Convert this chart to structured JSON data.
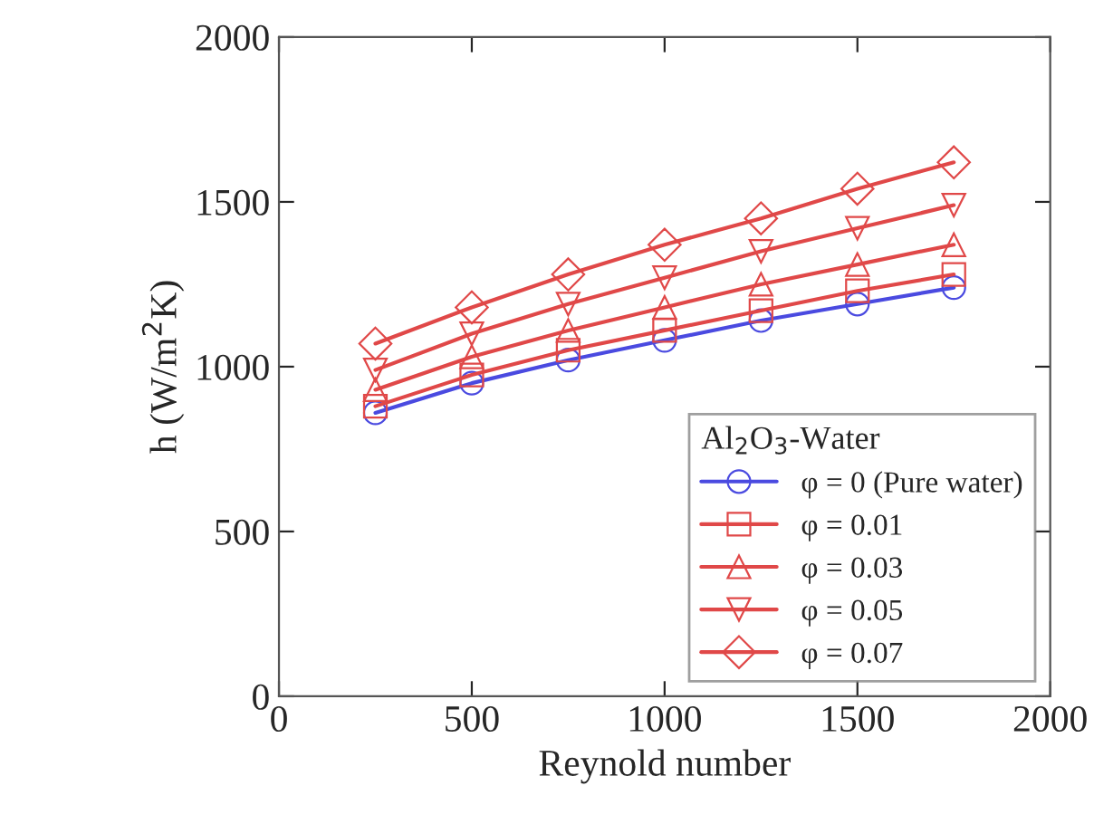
{
  "chart_data": {
    "type": "line",
    "xlabel": "Reynold number",
    "ylabel": "h (W/m$^{2}$K)",
    "legend_title": "Al$_{2}$O$_{3}$-Water",
    "x": [
      250,
      500,
      750,
      1000,
      1250,
      1500,
      1750
    ],
    "series": [
      {
        "name": "φ = 0 (Pure water)",
        "color": "#4a4ae0",
        "marker": "circle",
        "values": [
          860,
          950,
          1020,
          1080,
          1140,
          1190,
          1240
        ]
      },
      {
        "name": "φ = 0.01",
        "color": "#e04848",
        "marker": "square",
        "values": [
          880,
          975,
          1050,
          1110,
          1170,
          1230,
          1280
        ]
      },
      {
        "name": "φ = 0.03",
        "color": "#e04848",
        "marker": "triangle",
        "values": [
          930,
          1030,
          1110,
          1180,
          1250,
          1310,
          1370
        ]
      },
      {
        "name": "φ = 0.05",
        "color": "#e04848",
        "marker": "triangle_down",
        "values": [
          990,
          1100,
          1190,
          1270,
          1350,
          1420,
          1490
        ]
      },
      {
        "name": "φ = 0.07",
        "color": "#e04848",
        "marker": "diamond",
        "values": [
          1070,
          1180,
          1280,
          1370,
          1450,
          1540,
          1620
        ]
      }
    ],
    "xlim": [
      0,
      2000
    ],
    "xticks": [
      0,
      500,
      1000,
      1500,
      2000
    ],
    "ylim": [
      0,
      2000
    ],
    "yticks": [
      0,
      500,
      1000,
      1500,
      2000
    ],
    "grid": false,
    "legend": "bottom right",
    "line_style": "solid"
  }
}
